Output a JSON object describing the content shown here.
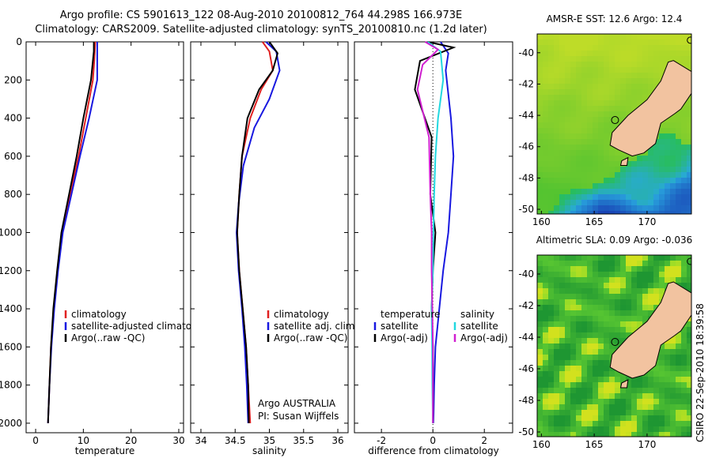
{
  "header": {
    "line1": "Argo profile: CS 5901613_122 08-Aug-2010 20100812_764 44.298S 166.973E",
    "line2": "Climatology: CARS2009. Satellite-adjusted climatology: synTS_20100810.nc (1.2d later)"
  },
  "credit": "CSIRO 22-Sep-2010 18:39:58",
  "colors": {
    "climatology": "#e02020",
    "satellite": "#1818e0",
    "argo": "#000000",
    "sat_salinity": "#22d8e0",
    "argo_salinity": "#d020d0",
    "land": "#f2c3a0"
  },
  "chart_data": [
    {
      "id": "temperature",
      "type": "line",
      "xlabel": "temperature",
      "ylabel": "",
      "xlim": [
        -2,
        31
      ],
      "ylim": [
        2050,
        0
      ],
      "xticks": [
        "0",
        "10",
        "20",
        "30"
      ],
      "xtick_values": [
        0,
        10,
        20,
        30
      ],
      "yticks": [
        "0",
        "200",
        "400",
        "600",
        "800",
        "1000",
        "1200",
        "1400",
        "1600",
        "1800",
        "2000"
      ],
      "ytick_values": [
        0,
        200,
        400,
        600,
        800,
        1000,
        1200,
        1400,
        1600,
        1800,
        2000
      ],
      "legend": [
        "climatology",
        "satellite-adjusted climatology",
        "Argo(..raw -QC)"
      ],
      "series": [
        {
          "name": "climatology",
          "color_key": "climatology",
          "points": [
            [
              12.5,
              0
            ],
            [
              12.3,
              100
            ],
            [
              12.0,
              200
            ],
            [
              10.5,
              400
            ],
            [
              9.0,
              600
            ],
            [
              7.2,
              800
            ],
            [
              5.6,
              1000
            ],
            [
              4.6,
              1200
            ],
            [
              3.8,
              1400
            ],
            [
              3.2,
              1600
            ],
            [
              2.9,
              1800
            ],
            [
              2.6,
              2000
            ]
          ]
        },
        {
          "name": "satellite-adjusted climatology",
          "color_key": "satellite",
          "points": [
            [
              12.9,
              0
            ],
            [
              12.9,
              100
            ],
            [
              12.9,
              200
            ],
            [
              11.2,
              400
            ],
            [
              9.3,
              600
            ],
            [
              7.5,
              800
            ],
            [
              5.7,
              1000
            ],
            [
              4.7,
              1200
            ],
            [
              3.9,
              1400
            ],
            [
              3.3,
              1600
            ],
            [
              2.9,
              1800
            ],
            [
              2.6,
              2000
            ]
          ]
        },
        {
          "name": "Argo(..raw -QC)",
          "color_key": "argo",
          "points": [
            [
              12.2,
              0
            ],
            [
              12.2,
              50
            ],
            [
              11.6,
              200
            ],
            [
              10.0,
              400
            ],
            [
              8.6,
              600
            ],
            [
              7.0,
              800
            ],
            [
              5.4,
              1000
            ],
            [
              4.5,
              1200
            ],
            [
              3.7,
              1400
            ],
            [
              3.2,
              1600
            ],
            [
              2.9,
              1800
            ],
            [
              2.6,
              2000
            ]
          ]
        }
      ]
    },
    {
      "id": "salinity",
      "type": "line",
      "xlabel": "salinity",
      "xlim": [
        33.85,
        36.15
      ],
      "ylim": [
        2050,
        0
      ],
      "xticks": [
        "34",
        "34.5",
        "35",
        "35.5",
        "36"
      ],
      "xtick_values": [
        34,
        34.5,
        35,
        35.5,
        36
      ],
      "legend": [
        "climatology",
        "satellite adj. clim.",
        "Argo(..raw -QC)"
      ],
      "annotation": [
        "Argo AUSTRALIA",
        "PI: Susan Wijffels"
      ],
      "series": [
        {
          "name": "climatology",
          "color_key": "climatology",
          "points": [
            [
              34.9,
              0
            ],
            [
              35.0,
              50
            ],
            [
              35.05,
              150
            ],
            [
              34.88,
              250
            ],
            [
              34.72,
              400
            ],
            [
              34.6,
              600
            ],
            [
              34.56,
              800
            ],
            [
              34.53,
              1000
            ],
            [
              34.56,
              1200
            ],
            [
              34.61,
              1400
            ],
            [
              34.66,
              1600
            ],
            [
              34.69,
              1800
            ],
            [
              34.72,
              2000
            ]
          ]
        },
        {
          "name": "satellite adj. clim.",
          "color_key": "satellite",
          "points": [
            [
              34.95,
              0
            ],
            [
              35.1,
              50
            ],
            [
              35.15,
              150
            ],
            [
              35.0,
              300
            ],
            [
              34.78,
              450
            ],
            [
              34.62,
              650
            ],
            [
              34.55,
              850
            ],
            [
              34.52,
              1000
            ],
            [
              34.55,
              1200
            ],
            [
              34.6,
              1400
            ],
            [
              34.64,
              1600
            ],
            [
              34.67,
              1800
            ],
            [
              34.69,
              2000
            ]
          ]
        },
        {
          "name": "Argo(..raw -QC)",
          "color_key": "argo",
          "points": [
            [
              35.0,
              0
            ],
            [
              35.12,
              60
            ],
            [
              35.05,
              150
            ],
            [
              34.85,
              250
            ],
            [
              34.68,
              400
            ],
            [
              34.6,
              600
            ],
            [
              34.56,
              800
            ],
            [
              34.53,
              1000
            ],
            [
              34.56,
              1200
            ],
            [
              34.61,
              1400
            ],
            [
              34.66,
              1600
            ],
            [
              34.69,
              1800
            ],
            [
              34.7,
              2000
            ]
          ]
        }
      ]
    },
    {
      "id": "difference",
      "type": "line",
      "xlabel": "difference from climatology",
      "xlim": [
        -3.05,
        3.1
      ],
      "ylim": [
        2050,
        0
      ],
      "xticks": [
        "-2",
        "0",
        "2"
      ],
      "xtick_values": [
        -2,
        0,
        2
      ],
      "legend_temperature": [
        "temperature",
        "satellite",
        "Argo(-adj)"
      ],
      "legend_salinity": [
        "salinity",
        "satellite",
        "Argo(-adj)"
      ],
      "series": [
        {
          "name": "temperature satellite",
          "color_key": "satellite",
          "points": [
            [
              0.3,
              0
            ],
            [
              0.6,
              60
            ],
            [
              0.5,
              150
            ],
            [
              0.7,
              400
            ],
            [
              0.8,
              600
            ],
            [
              0.7,
              800
            ],
            [
              0.6,
              1000
            ],
            [
              0.4,
              1200
            ],
            [
              0.25,
              1400
            ],
            [
              0.1,
              1600
            ],
            [
              0.05,
              1800
            ],
            [
              0.02,
              2000
            ]
          ]
        },
        {
          "name": "temperature Argo(-adj)",
          "color_key": "argo",
          "points": [
            [
              -0.2,
              0
            ],
            [
              0.8,
              30
            ],
            [
              -0.5,
              100
            ],
            [
              -0.7,
              250
            ],
            [
              -0.05,
              500
            ],
            [
              -0.1,
              800
            ],
            [
              0.1,
              1000
            ],
            [
              0.0,
              1200
            ],
            [
              -0.05,
              1400
            ],
            [
              0.0,
              1600
            ],
            [
              0.0,
              1800
            ],
            [
              0.0,
              2000
            ]
          ]
        },
        {
          "name": "salinity satellite",
          "color_key": "sat_salinity",
          "points": [
            [
              -0.2,
              0
            ],
            [
              0.3,
              50
            ],
            [
              0.4,
              200
            ],
            [
              0.2,
              400
            ],
            [
              0.1,
              600
            ],
            [
              0.05,
              800
            ],
            [
              0.02,
              1000
            ],
            [
              0.0,
              1200
            ],
            [
              -0.05,
              1400
            ],
            [
              -0.03,
              1600
            ],
            [
              -0.02,
              1800
            ],
            [
              0.0,
              2000
            ]
          ]
        },
        {
          "name": "salinity Argo(-adj)",
          "color_key": "argo_salinity",
          "points": [
            [
              -0.3,
              0
            ],
            [
              0.2,
              40
            ],
            [
              -0.4,
              120
            ],
            [
              -0.6,
              250
            ],
            [
              -0.15,
              500
            ],
            [
              -0.1,
              800
            ],
            [
              -0.05,
              1000
            ],
            [
              -0.05,
              1200
            ],
            [
              -0.02,
              1400
            ],
            [
              0.0,
              1600
            ],
            [
              0.0,
              1800
            ],
            [
              0.0,
              2000
            ]
          ]
        }
      ]
    },
    {
      "id": "sst_map",
      "type": "heatmap",
      "title": "AMSR-E SST: 12.6 Argo: 12.4",
      "xticks": [
        "160",
        "165",
        "170"
      ],
      "xtick_values": [
        160,
        165,
        170
      ],
      "yticks": [
        "-40",
        "-42",
        "-44",
        "-46",
        "-48",
        "-50"
      ],
      "ytick_values": [
        -40,
        -42,
        -44,
        -46,
        -48,
        -50
      ],
      "xlim": [
        159.6,
        174.2
      ],
      "ylim": [
        -50.3,
        -38.8
      ]
    },
    {
      "id": "sla_map",
      "type": "heatmap",
      "title": "Altimetric SLA: 0.09 Argo: -0.036",
      "xticks": [
        "160",
        "165",
        "170"
      ],
      "xtick_values": [
        160,
        165,
        170
      ],
      "yticks": [
        "-40",
        "-42",
        "-44",
        "-46",
        "-48",
        "-50"
      ],
      "ytick_values": [
        -40,
        -42,
        -44,
        -46,
        -48,
        -50
      ],
      "xlim": [
        159.6,
        174.2
      ],
      "ylim": [
        -50.3,
        -38.8
      ]
    }
  ]
}
